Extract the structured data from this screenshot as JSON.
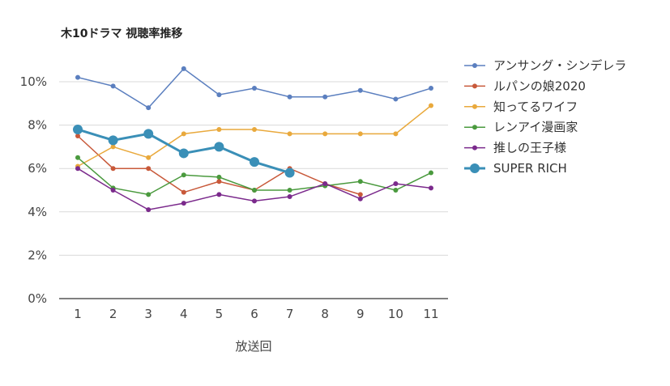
{
  "chart_data": {
    "type": "line",
    "title": "木10ドラマ 視聴率推移",
    "xlabel": "放送回",
    "ylabel": "",
    "x": [
      1,
      2,
      3,
      4,
      5,
      6,
      7,
      8,
      9,
      10,
      11
    ],
    "x_tick_labels": [
      "1",
      "2",
      "3",
      "4",
      "5",
      "6",
      "7",
      "8",
      "9",
      "10",
      "11"
    ],
    "ylim": [
      0,
      11
    ],
    "y_ticks": [
      0,
      2,
      4,
      6,
      8,
      10
    ],
    "y_tick_labels": [
      "0%",
      "2%",
      "4%",
      "6%",
      "8%",
      "10%"
    ],
    "grid": true,
    "legend_position": "right",
    "series": [
      {
        "name": "アンサング・シンデレラ",
        "color": "#5b7fbf",
        "values": [
          10.2,
          9.8,
          8.8,
          10.6,
          9.4,
          9.7,
          9.3,
          9.3,
          9.6,
          9.2,
          9.7
        ]
      },
      {
        "name": "ルパンの娘2020",
        "color": "#c8593a",
        "values": [
          7.5,
          6.0,
          6.0,
          4.9,
          5.4,
          5.0,
          6.0,
          5.3,
          4.8,
          null,
          null
        ]
      },
      {
        "name": "知ってるワイフ",
        "color": "#e9a93c",
        "values": [
          6.1,
          7.0,
          6.5,
          7.6,
          7.8,
          7.8,
          7.6,
          7.6,
          7.6,
          7.6,
          8.9
        ]
      },
      {
        "name": "レンアイ漫画家",
        "color": "#4a9a3e",
        "values": [
          6.5,
          5.1,
          4.8,
          5.7,
          5.6,
          5.0,
          5.0,
          5.2,
          5.4,
          5.0,
          5.8
        ]
      },
      {
        "name": "推しの王子様",
        "color": "#7b2a8c",
        "values": [
          6.0,
          5.0,
          4.1,
          4.4,
          4.8,
          4.5,
          4.7,
          5.3,
          4.6,
          5.3,
          5.1
        ]
      },
      {
        "name": "SUPER RICH",
        "color": "#3a8fb7",
        "highlight": true,
        "values": [
          7.8,
          7.3,
          7.6,
          6.7,
          7.0,
          6.3,
          5.8,
          null,
          null,
          null,
          null
        ]
      }
    ]
  }
}
